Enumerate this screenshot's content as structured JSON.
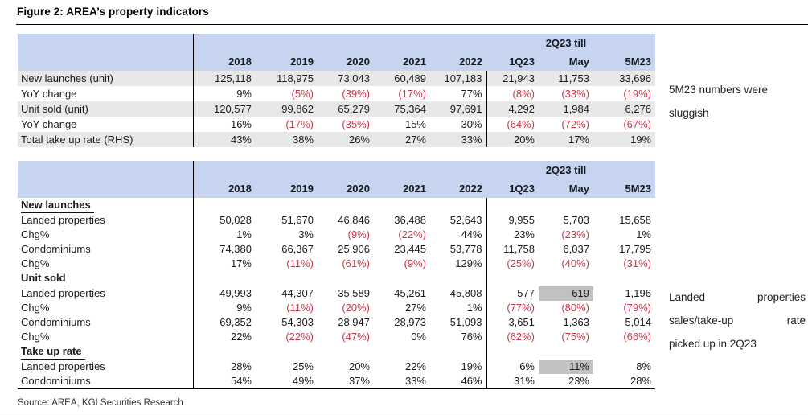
{
  "title": "Figure 2: AREA’s property indicators",
  "source": "Source: AREA, KGI Securities Research",
  "colors": {
    "header_fill": "#c7d4f0",
    "negative_red": "#c9384a",
    "highlight_gray": "#c1c1c1",
    "stripe_gray": "#e8e8e8",
    "line_black": "#000000"
  },
  "header": {
    "group_label": "2Q23 till",
    "group_over_column": "May",
    "columns": [
      "2018",
      "2019",
      "2020",
      "2021",
      "2022",
      "1Q23",
      "May",
      "5M23"
    ]
  },
  "table1": {
    "rows": [
      {
        "label": "New launches (unit)",
        "values": [
          "125,118",
          "118,975",
          "73,043",
          "60,489",
          "107,183",
          "21,943",
          "11,753",
          "33,696"
        ]
      },
      {
        "label": "YoY change",
        "values": [
          "9%",
          "(5%)",
          "(39%)",
          "(17%)",
          "77%",
          "(8%)",
          "(33%)",
          "(19%)"
        ]
      },
      {
        "label": "Unit sold (unit)",
        "values": [
          "120,577",
          "99,862",
          "65,279",
          "75,364",
          "97,691",
          "4,292",
          "1,984",
          "6,276"
        ]
      },
      {
        "label": "YoY change",
        "values": [
          "16%",
          "(17%)",
          "(35%)",
          "15%",
          "30%",
          "(64%)",
          "(72%)",
          "(67%)"
        ]
      },
      {
        "label": "Total take up rate (RHS)",
        "values": [
          "43%",
          "38%",
          "26%",
          "27%",
          "33%",
          "20%",
          "17%",
          "19%"
        ]
      }
    ]
  },
  "table2": {
    "rows": [
      {
        "label": "New launches",
        "type": "section"
      },
      {
        "label": "Landed properties",
        "values": [
          "50,028",
          "51,670",
          "46,846",
          "36,488",
          "52,643",
          "9,955",
          "5,703",
          "15,658"
        ]
      },
      {
        "label": "Chg%",
        "values": [
          "1%",
          "3%",
          "(9%)",
          "(22%)",
          "44%",
          "23%",
          "(23%)",
          "1%"
        ]
      },
      {
        "label": "Condominiums",
        "values": [
          "74,380",
          "66,367",
          "25,906",
          "23,445",
          "53,778",
          "11,758",
          "6,037",
          "17,795"
        ]
      },
      {
        "label": "Chg%",
        "values": [
          "17%",
          "(11%)",
          "(61%)",
          "(9%)",
          "129%",
          "(25%)",
          "(40%)",
          "(31%)"
        ]
      },
      {
        "label": "Unit sold",
        "type": "section"
      },
      {
        "label": "Landed properties",
        "values": [
          "49,993",
          "44,307",
          "35,589",
          "45,261",
          "45,808",
          "577",
          "619",
          "1,196"
        ],
        "highlight": [
          6
        ]
      },
      {
        "label": "Chg%",
        "values": [
          "9%",
          "(11%)",
          "(20%)",
          "27%",
          "1%",
          "(77%)",
          "(80%)",
          "(79%)"
        ]
      },
      {
        "label": "Condominiums",
        "values": [
          "69,352",
          "54,303",
          "28,947",
          "28,973",
          "51,093",
          "3,651",
          "1,363",
          "5,014"
        ]
      },
      {
        "label": "Chg%",
        "values": [
          "22%",
          "(22%)",
          "(47%)",
          "0%",
          "76%",
          "(62%)",
          "(75%)",
          "(66%)"
        ]
      },
      {
        "label": "Take up rate",
        "type": "section"
      },
      {
        "label": "Landed properties",
        "values": [
          "28%",
          "25%",
          "20%",
          "22%",
          "19%",
          "6%",
          "11%",
          "8%"
        ],
        "highlight": [
          6
        ]
      },
      {
        "label": "Condominiums",
        "values": [
          "54%",
          "49%",
          "37%",
          "33%",
          "46%",
          "31%",
          "23%",
          "28%"
        ]
      }
    ]
  },
  "notes": {
    "note1": {
      "lines": [
        {
          "text": "5M23 numbers were",
          "spread": false
        },
        {
          "text": "sluggish",
          "spread": false
        }
      ]
    },
    "note2": {
      "lines": [
        {
          "text": "Landed properties",
          "spread": true
        },
        {
          "text": "sales/take-up rate",
          "spread": true
        },
        {
          "text": "picked up in 2Q23",
          "spread": false
        }
      ]
    }
  }
}
